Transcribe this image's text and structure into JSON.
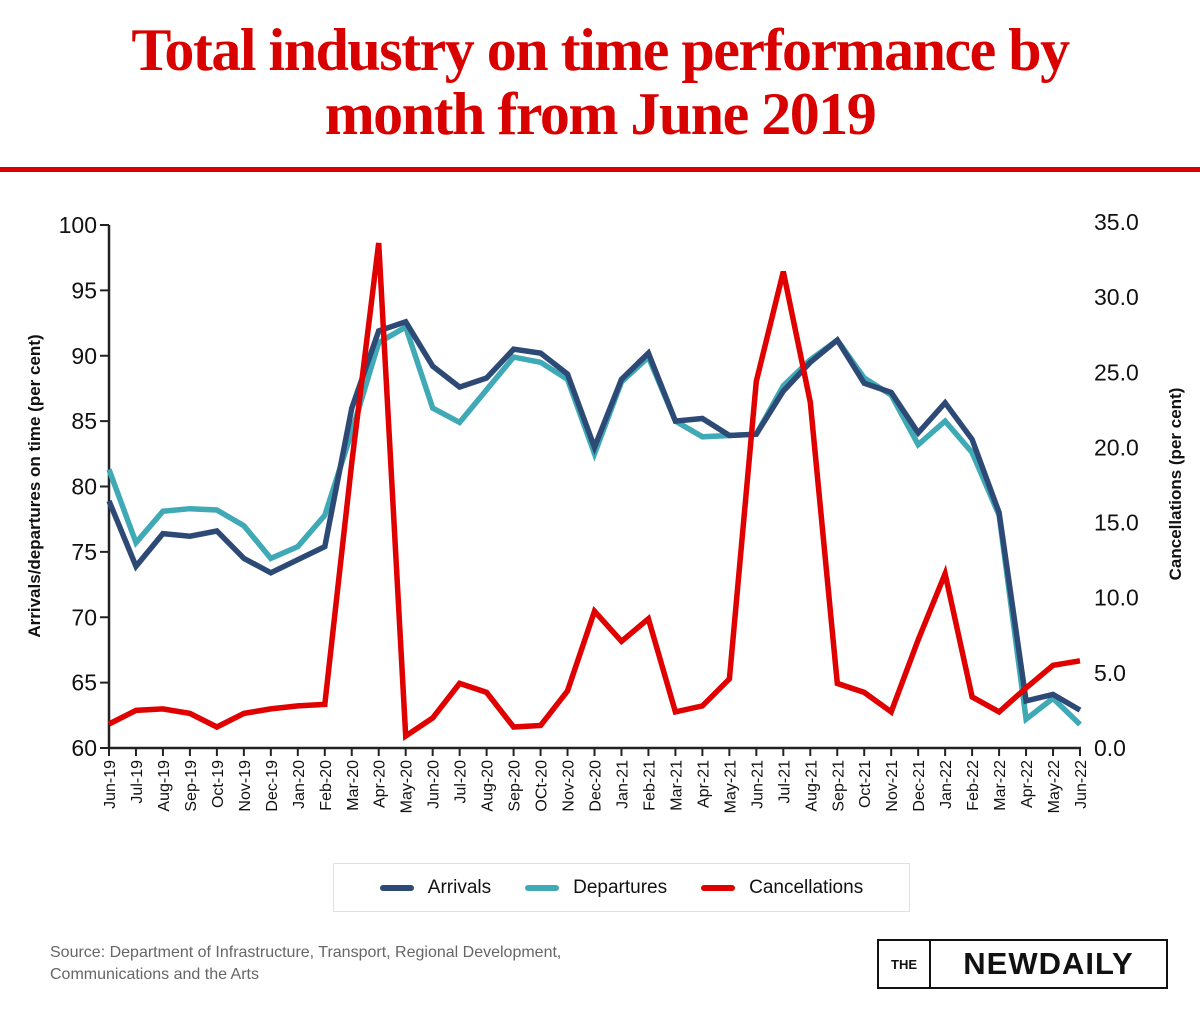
{
  "title_line1": "Total industry on time performance by",
  "title_line2": "month from June 2019",
  "legend": [
    {
      "label": "Arrivals",
      "color": "#2d4a76"
    },
    {
      "label": "Departures",
      "color": "#3fa9b5"
    },
    {
      "label": "Cancellations",
      "color": "#e00000"
    }
  ],
  "source_line1": "Source: Department of Infrastructure, Transport, Regional Development,",
  "source_line2": "Communications and the Arts",
  "logo": {
    "the": "THE",
    "name": "NEWDAILY"
  },
  "chart_data": {
    "type": "line",
    "title": "Total industry on time performance by month from June 2019",
    "xlabel": "",
    "ylabel": "Arrivals/departures on time (per cent)",
    "ylabel_right": "Cancellations (per cent)",
    "ylim": [
      60,
      100
    ],
    "ylim_right": [
      0,
      35
    ],
    "yticks": [
      "60",
      "65",
      "70",
      "75",
      "80",
      "85",
      "90",
      "95",
      "100"
    ],
    "yticks_right": [
      "0.0",
      "5.0",
      "10.0",
      "15.0",
      "20.0",
      "25.0",
      "30.0",
      "35.0"
    ],
    "grid": false,
    "legend_position": "bottom",
    "categories": [
      "Jun-19",
      "Jul-19",
      "Aug-19",
      "Sep-19",
      "Oct-19",
      "Nov-19",
      "Dec-19",
      "Jan-20",
      "Feb-20",
      "Mar-20",
      "Apr-20",
      "May-20",
      "Jun-20",
      "Jul-20",
      "Aug-20",
      "Sep-20",
      "OCt-20",
      "Nov-20",
      "Dec-20",
      "Jan-21",
      "Feb-21",
      "Mar-21",
      "Apr-21",
      "May-21",
      "Jun-21",
      "Jul-21",
      "Aug-21",
      "Sep-21",
      "Oct-21",
      "Nov-21",
      "Dec-21",
      "Jan-22",
      "Feb-22",
      "Mar-22",
      "Apr-22",
      "May-22",
      "Jun-22"
    ],
    "series": [
      {
        "name": "Arrivals",
        "axis": "left",
        "color": "#2d4a76",
        "values": [
          78.9,
          73.9,
          76.4,
          76.2,
          76.6,
          74.5,
          73.4,
          74.4,
          75.4,
          86.0,
          91.9,
          92.6,
          89.2,
          87.6,
          88.3,
          90.5,
          90.2,
          88.6,
          83.0,
          88.2,
          90.2,
          85.0,
          85.2,
          83.9,
          84.0,
          87.3,
          89.5,
          91.2,
          87.9,
          87.2,
          84.1,
          86.4,
          83.6,
          78.0,
          63.6,
          64.1,
          62.9
        ]
      },
      {
        "name": "Departures",
        "axis": "left",
        "color": "#3fa9b5",
        "values": [
          81.3,
          75.7,
          78.1,
          78.3,
          78.2,
          77.0,
          74.5,
          75.4,
          77.8,
          84.2,
          91.0,
          92.2,
          86.0,
          84.9,
          87.4,
          89.9,
          89.5,
          88.2,
          82.5,
          88.0,
          89.9,
          85.0,
          83.8,
          83.9,
          84.0,
          87.7,
          89.7,
          91.2,
          88.3,
          87.0,
          83.2,
          85.0,
          82.6,
          77.8,
          62.2,
          63.8,
          61.8
        ]
      },
      {
        "name": "Cancellations",
        "axis": "right",
        "color": "#e00000",
        "values": [
          1.6,
          2.5,
          2.6,
          2.3,
          1.4,
          2.3,
          2.6,
          2.8,
          2.9,
          19.0,
          33.6,
          0.8,
          2.0,
          4.3,
          3.7,
          1.4,
          1.5,
          3.8,
          9.1,
          7.1,
          8.6,
          2.4,
          2.8,
          4.6,
          24.4,
          31.7,
          23.0,
          4.3,
          3.7,
          2.4,
          7.2,
          11.6,
          3.4,
          2.4,
          4.0,
          5.5,
          5.8
        ]
      }
    ]
  }
}
